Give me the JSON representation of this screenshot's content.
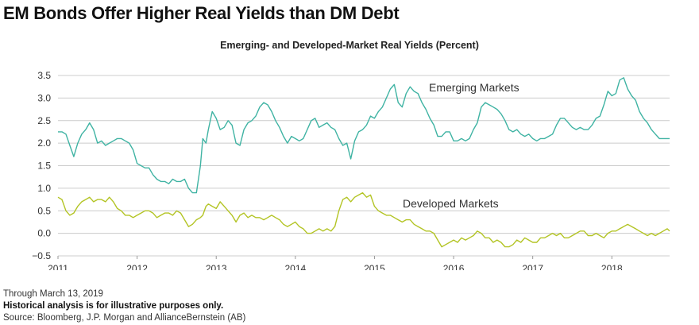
{
  "page": {
    "title": "EM Bonds Offer Higher Real Yields than DM Debt",
    "note": "Through March 13, 2019",
    "disclaimer": "Historical analysis is for illustrative purposes only.",
    "source": "Source: Bloomberg, J.P. Morgan and AllianceBernstein (AB)"
  },
  "chart_data": {
    "type": "line",
    "title": "Emerging- and Developed-Market Real Yields (Percent)",
    "xlabel": "",
    "ylabel": "",
    "xlim": [
      2011.0,
      2018.73
    ],
    "ylim": [
      -0.5,
      3.5
    ],
    "x_ticks": [
      "2011",
      "2012",
      "2013",
      "2014",
      "2015",
      "2016",
      "2017",
      "2018"
    ],
    "y_ticks": [
      "3.5",
      "3.0",
      "2.5",
      "2.0",
      "1.5",
      "1.0",
      "0.5",
      "0.0",
      "−0.5"
    ],
    "grid": true,
    "legend": "inline labels",
    "colors": {
      "emerging": "#3fb3a3",
      "developed": "#b3c424",
      "grid": "#cccccc"
    },
    "x": [
      2011.0,
      2011.05,
      2011.1,
      2011.15,
      2011.2,
      2011.25,
      2011.3,
      2011.35,
      2011.4,
      2011.45,
      2011.5,
      2011.55,
      2011.6,
      2011.65,
      2011.7,
      2011.75,
      2011.8,
      2011.85,
      2011.9,
      2011.95,
      2012.0,
      2012.05,
      2012.1,
      2012.15,
      2012.2,
      2012.25,
      2012.3,
      2012.35,
      2012.4,
      2012.45,
      2012.5,
      2012.55,
      2012.6,
      2012.65,
      2012.7,
      2012.75,
      2012.8,
      2012.83,
      2012.87,
      2012.9,
      2012.95,
      2013.0,
      2013.05,
      2013.1,
      2013.15,
      2013.2,
      2013.25,
      2013.3,
      2013.35,
      2013.4,
      2013.45,
      2013.5,
      2013.55,
      2013.6,
      2013.65,
      2013.7,
      2013.75,
      2013.8,
      2013.85,
      2013.9,
      2013.95,
      2014.0,
      2014.05,
      2014.1,
      2014.15,
      2014.2,
      2014.25,
      2014.3,
      2014.35,
      2014.4,
      2014.45,
      2014.5,
      2014.55,
      2014.6,
      2014.65,
      2014.7,
      2014.75,
      2014.8,
      2014.85,
      2014.9,
      2014.95,
      2015.0,
      2015.05,
      2015.1,
      2015.15,
      2015.2,
      2015.25,
      2015.3,
      2015.35,
      2015.4,
      2015.45,
      2015.5,
      2015.55,
      2015.6,
      2015.65,
      2015.7,
      2015.75,
      2015.8,
      2015.85,
      2015.9,
      2015.95,
      2016.0,
      2016.05,
      2016.1,
      2016.15,
      2016.2,
      2016.25,
      2016.3,
      2016.35,
      2016.4,
      2016.45,
      2016.5,
      2016.55,
      2016.6,
      2016.65,
      2016.7,
      2016.75,
      2016.8,
      2016.85,
      2016.9,
      2016.95,
      2017.0,
      2017.05,
      2017.1,
      2017.15,
      2017.2,
      2017.25,
      2017.3,
      2017.35,
      2017.4,
      2017.45,
      2017.5,
      2017.55,
      2017.6,
      2017.65,
      2017.7,
      2017.75,
      2017.8,
      2017.85,
      2017.9,
      2017.95,
      2018.0,
      2018.05,
      2018.1,
      2018.15,
      2018.2,
      2018.25,
      2018.3,
      2018.35,
      2018.4,
      2018.45,
      2018.5,
      2018.55,
      2018.6,
      2018.65,
      2018.7,
      2018.73
    ],
    "series": [
      {
        "name": "Emerging Markets",
        "color": "#3fb3a3",
        "values": [
          2.25,
          2.25,
          2.2,
          1.95,
          1.7,
          2.0,
          2.2,
          2.3,
          2.45,
          2.3,
          2.0,
          2.05,
          1.95,
          2.0,
          2.05,
          2.1,
          2.1,
          2.05,
          2.0,
          1.85,
          1.55,
          1.5,
          1.45,
          1.45,
          1.3,
          1.2,
          1.15,
          1.15,
          1.1,
          1.2,
          1.15,
          1.15,
          1.2,
          1.0,
          0.9,
          0.9,
          1.5,
          2.1,
          2.0,
          2.3,
          2.7,
          2.55,
          2.3,
          2.35,
          2.5,
          2.4,
          2.0,
          1.95,
          2.3,
          2.45,
          2.5,
          2.6,
          2.8,
          2.9,
          2.85,
          2.7,
          2.5,
          2.35,
          2.15,
          2.0,
          2.15,
          2.1,
          2.05,
          2.1,
          2.3,
          2.5,
          2.55,
          2.35,
          2.4,
          2.45,
          2.35,
          2.3,
          2.1,
          1.95,
          2.0,
          1.65,
          2.05,
          2.25,
          2.3,
          2.4,
          2.6,
          2.55,
          2.7,
          2.8,
          3.0,
          3.2,
          3.3,
          2.9,
          2.8,
          3.1,
          3.25,
          3.15,
          3.1,
          2.9,
          2.75,
          2.55,
          2.4,
          2.15,
          2.15,
          2.25,
          2.25,
          2.05,
          2.05,
          2.1,
          2.05,
          2.1,
          2.3,
          2.45,
          2.8,
          2.9,
          2.85,
          2.8,
          2.75,
          2.65,
          2.5,
          2.3,
          2.25,
          2.3,
          2.2,
          2.15,
          2.2,
          2.1,
          2.05,
          2.1,
          2.1,
          2.15,
          2.2,
          2.4,
          2.55,
          2.55,
          2.45,
          2.35,
          2.3,
          2.35,
          2.3,
          2.3,
          2.4,
          2.55,
          2.6,
          2.85,
          3.15,
          3.05,
          3.1,
          3.4,
          3.45,
          3.2,
          3.05,
          2.95,
          2.7,
          2.55,
          2.45,
          2.3,
          2.2,
          2.1,
          2.1,
          2.1,
          2.1
        ]
      },
      {
        "name": "Developed Markets",
        "color": "#b3c424",
        "values": [
          0.8,
          0.75,
          0.5,
          0.4,
          0.45,
          0.6,
          0.7,
          0.75,
          0.8,
          0.7,
          0.75,
          0.75,
          0.7,
          0.8,
          0.7,
          0.55,
          0.5,
          0.4,
          0.4,
          0.35,
          0.4,
          0.45,
          0.5,
          0.5,
          0.45,
          0.35,
          0.4,
          0.45,
          0.45,
          0.4,
          0.5,
          0.45,
          0.3,
          0.15,
          0.2,
          0.3,
          0.35,
          0.4,
          0.6,
          0.65,
          0.6,
          0.55,
          0.7,
          0.6,
          0.5,
          0.4,
          0.25,
          0.4,
          0.45,
          0.35,
          0.4,
          0.35,
          0.35,
          0.3,
          0.35,
          0.4,
          0.35,
          0.3,
          0.2,
          0.15,
          0.2,
          0.25,
          0.15,
          0.1,
          0.0,
          0.0,
          0.05,
          0.1,
          0.05,
          0.1,
          0.05,
          0.15,
          0.5,
          0.75,
          0.8,
          0.7,
          0.8,
          0.85,
          0.9,
          0.8,
          0.85,
          0.6,
          0.5,
          0.45,
          0.4,
          0.4,
          0.35,
          0.3,
          0.25,
          0.3,
          0.3,
          0.2,
          0.15,
          0.1,
          0.05,
          0.05,
          0.0,
          -0.15,
          -0.3,
          -0.25,
          -0.2,
          -0.15,
          -0.2,
          -0.1,
          -0.15,
          -0.1,
          -0.05,
          0.05,
          0.0,
          -0.1,
          -0.1,
          -0.2,
          -0.15,
          -0.2,
          -0.3,
          -0.3,
          -0.25,
          -0.15,
          -0.2,
          -0.1,
          -0.15,
          -0.2,
          -0.2,
          -0.1,
          -0.1,
          -0.05,
          0.0,
          -0.05,
          0.0,
          -0.1,
          -0.1,
          -0.05,
          0.0,
          0.05,
          0.05,
          -0.05,
          -0.05,
          0.0,
          -0.05,
          -0.1,
          0.0,
          0.05,
          0.05,
          0.1,
          0.15,
          0.2,
          0.15,
          0.1,
          0.05,
          0.0,
          -0.05,
          0.0,
          -0.05,
          0.0,
          0.05,
          0.1,
          0.05
        ]
      }
    ]
  }
}
